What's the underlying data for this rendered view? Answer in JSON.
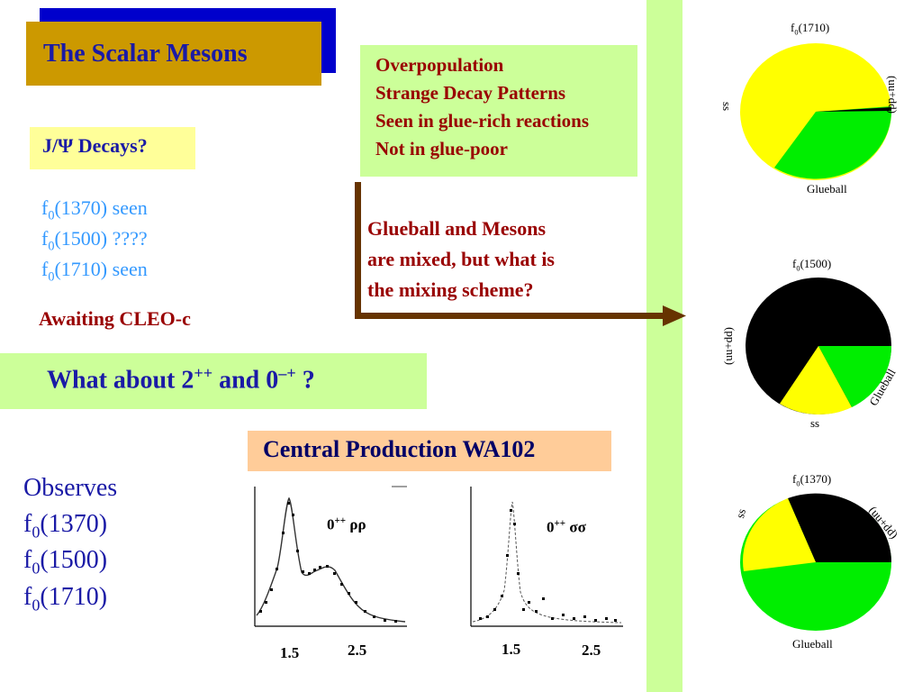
{
  "title": "The Scalar Mesons",
  "jpsi": "J/Ψ Decays?",
  "f_seen": [
    {
      "f": "f",
      "sub": "0",
      "rest": "(1370) seen"
    },
    {
      "f": "f",
      "sub": "0",
      "rest": "(1500) ????"
    },
    {
      "f": "f",
      "sub": "0",
      "rest": "(1710) seen"
    }
  ],
  "awaiting": "Awaiting CLEO-c",
  "question": {
    "pre": "What about 2",
    "sup1": "++",
    "mid": " and 0",
    "sup2": "–+",
    "post": " ?"
  },
  "overpop": [
    "Overpopulation",
    "Strange Decay Patterns",
    "Seen in glue-rich reactions",
    "Not in glue-poor"
  ],
  "mixing": [
    "Glueball and Mesons",
    "are mixed, but what is",
    "the mixing scheme?"
  ],
  "central_production": "Central Production WA102",
  "observes": {
    "heading": "Observes",
    "items": [
      {
        "f": "f",
        "sub": "0",
        "rest": "(1370)"
      },
      {
        "f": "f",
        "sub": "0",
        "rest": "(1500)"
      },
      {
        "f": "f",
        "sub": "0",
        "rest": "(1710)"
      }
    ]
  },
  "plots": [
    {
      "label_pre": "0",
      "label_sup": "++",
      "label_post": " ρρ",
      "x_ticks": [
        "1.5",
        "2.5"
      ]
    },
    {
      "label_pre": "0",
      "label_sup": "++",
      "label_post": " σσ",
      "x_ticks": [
        "1.5",
        "2.5"
      ]
    }
  ],
  "pies": [
    {
      "title_pre": "f",
      "title_sub": "0",
      "title_post": "(1710)",
      "labels": {
        "ss": "ss",
        "uudd": "(uu+dd)",
        "glueball": "Glueball"
      }
    },
    {
      "title_pre": "f",
      "title_sub": "0",
      "title_post": "(1500)",
      "labels": {
        "ss": "ss",
        "uudd": "(uu+dd)",
        "glueball": "Glueball"
      }
    },
    {
      "title_pre": "f",
      "title_sub": "0",
      "title_post": "(1370)",
      "labels": {
        "ss": "ss",
        "uudd": "(uu+dd)",
        "glueball": "Glueball"
      }
    }
  ],
  "colors": {
    "title_box": "#cc9900",
    "title_shadow": "#0000cc",
    "green_box": "#ccff99",
    "yellow_box": "#ffff99",
    "orange_box": "#ffcc99",
    "arrow": "#663300",
    "pie_yellow": "#ffff00",
    "pie_green": "#00ee00",
    "pie_black": "#000000"
  }
}
